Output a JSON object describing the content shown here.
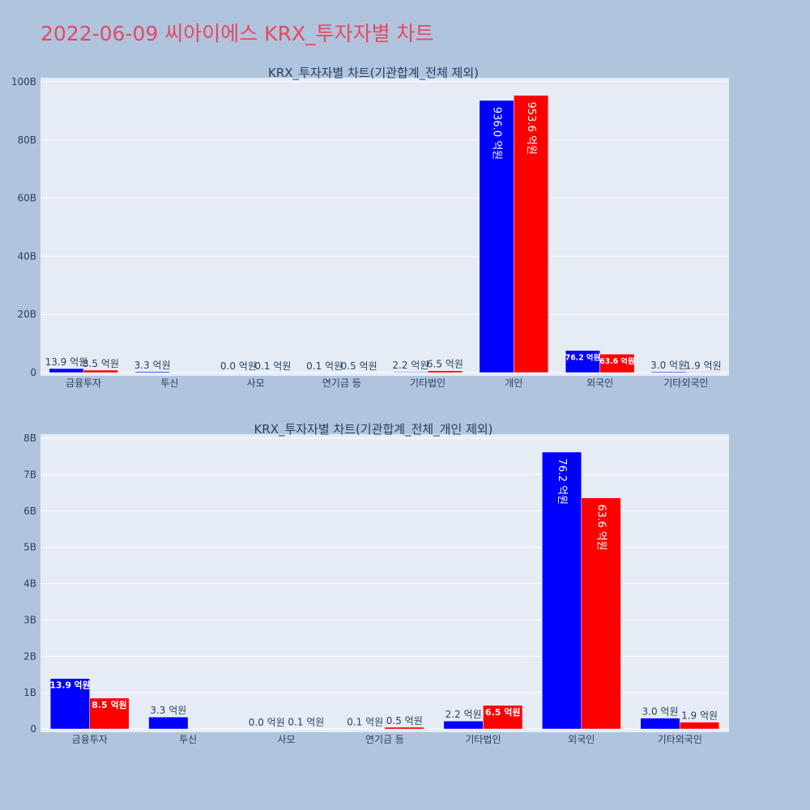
{
  "page": {
    "title": "2022-06-09 씨아이에스 KRX_투자자별 차트"
  },
  "colors": {
    "buy": "#0000ff",
    "sell": "#ff0000",
    "plot_bg": "#e5ecf6",
    "page_bg": "#b0c4de",
    "title": "#e8485c"
  },
  "chart_data": [
    {
      "type": "bar",
      "title": "KRX_투자자별 차트(기관합계_전체 제외)",
      "categories": [
        "금융투자",
        "투신",
        "사모",
        "연기금 등",
        "기타법인",
        "개인",
        "외국인",
        "기타외국인"
      ],
      "series": [
        {
          "values": [
            1390000000.0,
            330000000.0,
            0,
            10000000.0,
            220000000.0,
            93600000000.0,
            7620000000.0,
            300000000.0
          ],
          "labels": [
            "13.9 억원",
            "3.3 억원",
            "0.0 억원",
            "0.1 억원",
            "2.2 억원",
            "936.0 억원",
            "76.2 억원",
            "3.0 억원"
          ]
        },
        {
          "values": [
            850000000.0,
            0,
            10000000.0,
            50000000.0,
            650000000.0,
            95360000000.0,
            6360000000.0,
            190000000.0
          ],
          "labels": [
            "8.5 억원",
            "",
            "0.1 억원",
            "0.5 억원",
            "6.5 억원",
            "953.6 억원",
            "63.6 억원",
            "1.9 억원"
          ]
        }
      ],
      "ylim": [
        0,
        100000000000.0
      ],
      "yticks": [
        0,
        20000000000.0,
        40000000000.0,
        60000000000.0,
        80000000000.0,
        100000000000.0
      ],
      "ytick_labels": [
        "0",
        "20B",
        "40B",
        "60B",
        "80B",
        "100B"
      ],
      "grid": true,
      "legend": "none"
    },
    {
      "type": "bar",
      "title": "KRX_투자자별 차트(기관합계_전체_개인 제외)",
      "categories": [
        "금융투자",
        "투신",
        "사모",
        "연기금 등",
        "기타법인",
        "외국인",
        "기타외국인"
      ],
      "series": [
        {
          "values": [
            1390000000.0,
            330000000.0,
            0,
            10000000.0,
            220000000.0,
            7620000000.0,
            300000000.0
          ],
          "labels": [
            "13.9 억원",
            "3.3 억원",
            "0.0 억원",
            "0.1 억원",
            "2.2 억원",
            "76.2 억원",
            "3.0 억원"
          ]
        },
        {
          "values": [
            850000000.0,
            0,
            10000000.0,
            50000000.0,
            650000000.0,
            6360000000.0,
            190000000.0
          ],
          "labels": [
            "8.5 억원",
            "",
            "0.1 억원",
            "0.5 억원",
            "6.5 억원",
            "63.6 억원",
            "1.9 억원"
          ]
        }
      ],
      "ylim": [
        0,
        8000000000.0
      ],
      "yticks": [
        0,
        1000000000.0,
        2000000000.0,
        3000000000.0,
        4000000000.0,
        5000000000.0,
        6000000000.0,
        7000000000.0,
        8000000000.0
      ],
      "ytick_labels": [
        "0",
        "1B",
        "2B",
        "3B",
        "4B",
        "5B",
        "6B",
        "7B",
        "8B"
      ],
      "grid": true,
      "legend": "none"
    }
  ]
}
